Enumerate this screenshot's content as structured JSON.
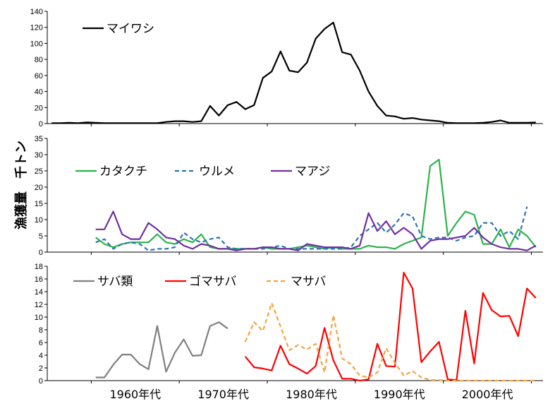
{
  "chart_data": [
    {
      "type": "line",
      "title": "",
      "ylim": [
        0,
        140
      ],
      "yticks": [
        0,
        20,
        40,
        60,
        80,
        100,
        120,
        140
      ],
      "x_start": 1955,
      "series": [
        {
          "name": "マイワシ",
          "color": "#000000",
          "dash": "solid",
          "values": [
            0.5,
            0.5,
            1,
            0.5,
            1.5,
            1,
            0.5,
            0.5,
            0.5,
            0.5,
            0.5,
            0.5,
            0.5,
            2,
            3,
            3,
            2,
            3,
            22,
            10,
            23,
            27,
            18,
            23,
            57,
            65,
            90,
            66,
            64,
            76,
            106,
            118,
            126,
            89,
            86,
            66,
            40,
            22,
            10,
            9,
            6,
            7,
            5,
            4,
            3,
            1,
            0.5,
            0.5,
            0.5,
            1,
            2,
            4,
            1,
            1,
            1,
            1.5
          ]
        }
      ]
    },
    {
      "type": "line",
      "ylim": [
        0,
        35
      ],
      "yticks": [
        0,
        5,
        10,
        15,
        20,
        25,
        30,
        35
      ],
      "x_start": 1955,
      "series": [
        {
          "name": "カタクチ",
          "color": "#2db34a",
          "dash": "solid",
          "values": [
            null,
            null,
            null,
            null,
            null,
            4.5,
            2.5,
            1.5,
            2.5,
            3,
            3,
            3,
            5.5,
            3,
            2.5,
            4,
            3,
            5.5,
            1.5,
            1,
            1,
            1,
            1,
            1,
            1.5,
            1,
            1,
            1,
            1.5,
            2,
            1.5,
            1,
            1.5,
            1,
            1,
            1,
            2,
            1.5,
            1.5,
            1,
            2.5,
            3.5,
            4.5,
            26.5,
            28.5,
            5,
            9,
            12.5,
            11.5,
            2.5,
            2.5,
            7,
            1.5,
            7,
            5,
            1.5
          ]
        },
        {
          "name": "ウルメ",
          "color": "#2e75b6",
          "dash": "dashed",
          "values": [
            null,
            null,
            null,
            null,
            null,
            3,
            4,
            1,
            2.5,
            3,
            2.5,
            0.5,
            1,
            1,
            1.5,
            6,
            4,
            3,
            4,
            4.5,
            1.5,
            1,
            1,
            1,
            1,
            1.5,
            2,
            1,
            1,
            1,
            1,
            1,
            1,
            1,
            1.5,
            5,
            7,
            9,
            6,
            8.5,
            12,
            11,
            5,
            4,
            4.5,
            4.5,
            3.5,
            4.5,
            5,
            9,
            9,
            5,
            6.5,
            4,
            14
          ]
        },
        {
          "name": "マアジ",
          "color": "#7030a0",
          "dash": "solid",
          "values": [
            null,
            null,
            null,
            null,
            null,
            7,
            7,
            12.5,
            5.5,
            4,
            4,
            9,
            7,
            4.5,
            4,
            2,
            1,
            2.5,
            2,
            1,
            1,
            0.5,
            1,
            1,
            1.5,
            1.5,
            1,
            1,
            0.5,
            2.5,
            2,
            1.5,
            1.5,
            1.5,
            1,
            2,
            12,
            6.5,
            9.5,
            5.5,
            7.5,
            5.5,
            1,
            3.5,
            4,
            4,
            4.5,
            5,
            7.5,
            4.5,
            2.5,
            1.5,
            1,
            1,
            0.5,
            2
          ]
        }
      ]
    },
    {
      "type": "line",
      "ylim": [
        0,
        18
      ],
      "yticks": [
        0,
        2,
        4,
        6,
        8,
        10,
        12,
        14,
        16,
        18
      ],
      "x_start": 1955,
      "series": [
        {
          "name": "サバ類",
          "color": "#808080",
          "dash": "solid",
          "values": [
            null,
            null,
            null,
            null,
            null,
            0.5,
            0.5,
            2.5,
            4.1,
            4.1,
            2.6,
            1.8,
            8.6,
            1.4,
            4.4,
            6.5,
            3.9,
            4,
            8.6,
            9.2,
            8.2
          ]
        },
        {
          "name": "ゴマサバ",
          "color": "#ff0000",
          "dash": "solid",
          "values": [
            null,
            null,
            null,
            null,
            null,
            null,
            null,
            null,
            null,
            null,
            null,
            null,
            null,
            null,
            null,
            null,
            null,
            null,
            null,
            null,
            null,
            null,
            3.8,
            2.1,
            1.9,
            1.6,
            5.5,
            2.6,
            1.9,
            1.1,
            2.3,
            8.3,
            3.2,
            0.3,
            0.3,
            0,
            0.2,
            5.8,
            2.3,
            2.2,
            17,
            14.5,
            2.9,
            4.6,
            6.1,
            0.2,
            0.1,
            11,
            2.7,
            13.8,
            11.1,
            10.1,
            10.2,
            7,
            14.5,
            13
          ]
        },
        {
          "name": "マサバ",
          "color": "#f4a442",
          "dash": "dashed",
          "values": [
            null,
            null,
            null,
            null,
            null,
            null,
            null,
            null,
            null,
            null,
            null,
            null,
            null,
            null,
            null,
            null,
            null,
            null,
            null,
            null,
            null,
            null,
            6.1,
            9.2,
            7.8,
            12.2,
            8.5,
            4.8,
            5.6,
            4.9,
            5.8,
            1.3,
            10.3,
            3.5,
            2.6,
            0.8,
            0.5,
            1.3,
            5.1,
            2.8,
            0.8,
            1.5,
            0.5,
            0.1,
            0.1,
            0,
            0,
            0,
            0,
            0,
            0,
            0,
            0,
            0,
            0,
            0
          ]
        }
      ]
    }
  ],
  "x_axis": {
    "labels": [
      "1960年代",
      "1970年代",
      "1980年代",
      "1990年代",
      "2000年代"
    ]
  },
  "y_axis_label": "漁獲量　千トン",
  "legends": {
    "panel1": [
      {
        "label": "マイワシ",
        "color": "#000000",
        "dash": "solid"
      }
    ],
    "panel2": [
      {
        "label": "カタクチ",
        "color": "#2db34a",
        "dash": "solid"
      },
      {
        "label": "ウルメ",
        "color": "#2e75b6",
        "dash": "dashed"
      },
      {
        "label": "マアジ",
        "color": "#7030a0",
        "dash": "solid"
      }
    ],
    "panel3": [
      {
        "label": "サバ類",
        "color": "#808080",
        "dash": "solid"
      },
      {
        "label": "ゴマサバ",
        "color": "#ff0000",
        "dash": "solid"
      },
      {
        "label": "マサバ",
        "color": "#f4a442",
        "dash": "dashed"
      }
    ]
  }
}
